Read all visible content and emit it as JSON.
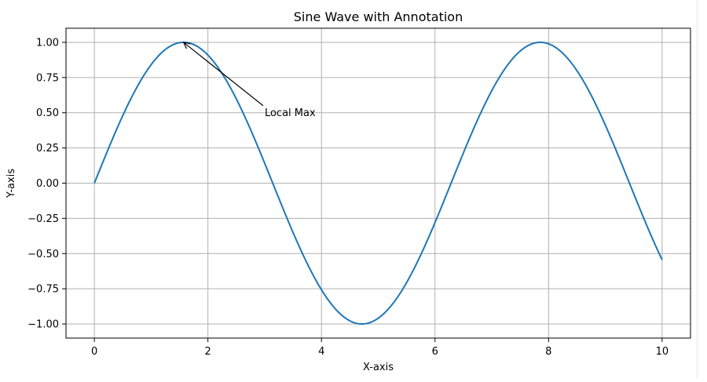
{
  "chart_data": {
    "type": "line",
    "title": "Sine Wave with Annotation",
    "xlabel": "X-axis",
    "ylabel": "Y-axis",
    "xlim": [
      -0.5,
      10.5
    ],
    "ylim": [
      -1.1,
      1.1
    ],
    "x_ticks": [
      0,
      2,
      4,
      6,
      8,
      10
    ],
    "x_tick_labels": [
      "0",
      "2",
      "4",
      "6",
      "8",
      "10"
    ],
    "y_ticks": [
      -1.0,
      -0.75,
      -0.5,
      -0.25,
      0.0,
      0.25,
      0.5,
      0.75,
      1.0
    ],
    "y_tick_labels": [
      "−1.00",
      "−0.75",
      "−0.50",
      "−0.25",
      "0.00",
      "0.25",
      "0.50",
      "0.75",
      "1.00"
    ],
    "grid": true,
    "series": [
      {
        "function": "sin",
        "x_start": 0,
        "x_end": 10,
        "color": "#1f77b4"
      }
    ],
    "annotations": [
      {
        "text": "Local Max",
        "point": [
          1.5708,
          1.0
        ],
        "text_at": [
          3.0,
          0.5
        ]
      }
    ]
  }
}
